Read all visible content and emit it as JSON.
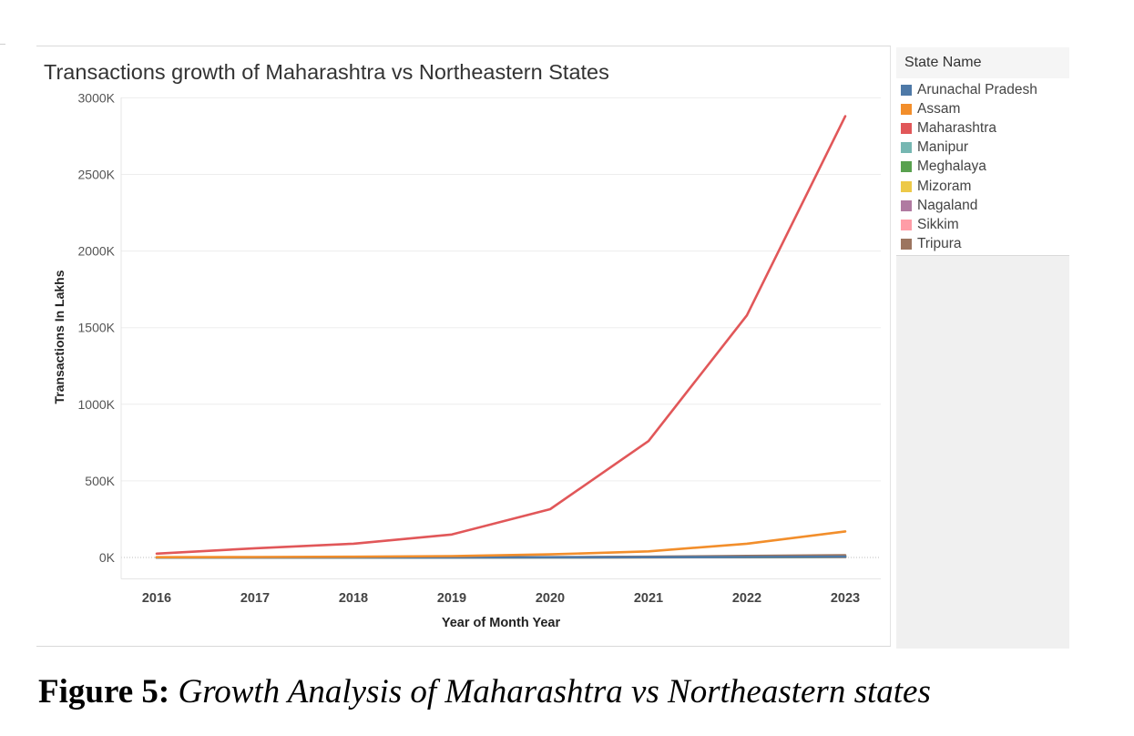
{
  "figure": {
    "caption_label": "Figure 5:",
    "caption_text": "Growth Analysis of Maharashtra vs Northeastern states"
  },
  "chart_data": {
    "type": "line",
    "title": "Transactions growth of Maharashtra vs Northeastern States",
    "xlabel": "Year of Month Year",
    "ylabel": "Transactions In Lakhs",
    "x": [
      "2016",
      "2017",
      "2018",
      "2019",
      "2020",
      "2021",
      "2022",
      "2023"
    ],
    "ylim": [
      -140,
      3000
    ],
    "yticks": [
      0,
      500,
      1000,
      1500,
      2000,
      2500,
      3000
    ],
    "ytick_labels": [
      "0K",
      "500K",
      "1000K",
      "1500K",
      "2000K",
      "2500K",
      "3000K"
    ],
    "grid": true,
    "legend_title": "State Name",
    "legend_position": "right",
    "series": [
      {
        "name": "Arunachal Pradesh",
        "color": "#4e79a7",
        "values": [
          0,
          0,
          0,
          0,
          1,
          2,
          3,
          5
        ]
      },
      {
        "name": "Assam",
        "color": "#f28e2b",
        "values": [
          2,
          3,
          5,
          9,
          20,
          40,
          90,
          170
        ]
      },
      {
        "name": "Maharashtra",
        "color": "#e15759",
        "values": [
          25,
          60,
          90,
          150,
          315,
          760,
          1580,
          2880
        ]
      },
      {
        "name": "Manipur",
        "color": "#76b7b2",
        "values": [
          0,
          0,
          0,
          1,
          1,
          2,
          4,
          7
        ]
      },
      {
        "name": "Meghalaya",
        "color": "#59a14f",
        "values": [
          0,
          0,
          0,
          1,
          1,
          2,
          3,
          5
        ]
      },
      {
        "name": "Mizoram",
        "color": "#edc948",
        "values": [
          0,
          0,
          0,
          0,
          1,
          1,
          2,
          3
        ]
      },
      {
        "name": "Nagaland",
        "color": "#b07aa1",
        "values": [
          0,
          0,
          0,
          0,
          1,
          1,
          2,
          3
        ]
      },
      {
        "name": "Sikkim",
        "color": "#ff9da7",
        "values": [
          0,
          0,
          0,
          0,
          0,
          1,
          1,
          2
        ]
      },
      {
        "name": "Tripura",
        "color": "#9c755f",
        "values": [
          0,
          0,
          1,
          1,
          2,
          5,
          10,
          15
        ]
      }
    ]
  }
}
